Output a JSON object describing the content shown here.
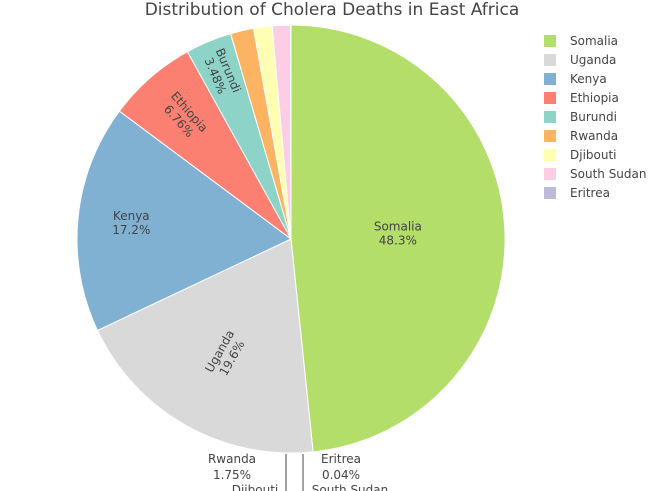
{
  "chart_data": {
    "type": "pie",
    "title": "Distribution of Cholera Deaths in East Africa",
    "slices": [
      {
        "label": "Somalia",
        "percent_text": "48.3%",
        "value": 48.3,
        "color": "#b3de69"
      },
      {
        "label": "Uganda",
        "percent_text": "19.6%",
        "value": 19.6,
        "color": "#d9d9d9"
      },
      {
        "label": "Kenya",
        "percent_text": "17.2%",
        "value": 17.2,
        "color": "#80b1d3"
      },
      {
        "label": "Ethiopia",
        "percent_text": "6.76%",
        "value": 6.76,
        "color": "#fb8072"
      },
      {
        "label": "Burundi",
        "percent_text": "3.48%",
        "value": 3.48,
        "color": "#8dd3c7"
      },
      {
        "label": "Rwanda",
        "percent_text": "1.75%",
        "value": 1.75,
        "color": "#fdb462"
      },
      {
        "label": "Djibouti",
        "percent_text": "",
        "value": 1.4,
        "color": "#ffffb3"
      },
      {
        "label": "South Sudan",
        "percent_text": "",
        "value": 1.36,
        "color": "#fccde5"
      },
      {
        "label": "Eritrea",
        "percent_text": "0.04%",
        "value": 0.04,
        "color": "#bebada"
      }
    ],
    "legend_position": "top-right",
    "legend": [
      "Somalia",
      "Uganda",
      "Kenya",
      "Ethiopia",
      "Burundi",
      "Rwanda",
      "Djibouti",
      "South Sudan",
      "Eritrea"
    ]
  }
}
